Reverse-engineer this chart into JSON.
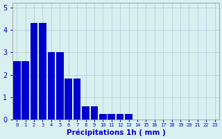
{
  "values": [
    2.6,
    2.6,
    4.3,
    4.3,
    3.0,
    3.0,
    1.85,
    1.85,
    0.6,
    0.6,
    0.25,
    0.25,
    0.25,
    0.25,
    0,
    0,
    0,
    0,
    0,
    0,
    0,
    0,
    0,
    0
  ],
  "bar_color": "#0000cc",
  "background_color": "#d8f0f0",
  "grid_color": "#b0c8d8",
  "xlabel": "Précipitations 1h ( mm )",
  "ylim": [
    0,
    5.2
  ],
  "yticks": [
    0,
    1,
    2,
    3,
    4,
    5
  ],
  "tick_color": "#0000cc",
  "xlabel_color": "#0000cc",
  "n_bars": 24
}
